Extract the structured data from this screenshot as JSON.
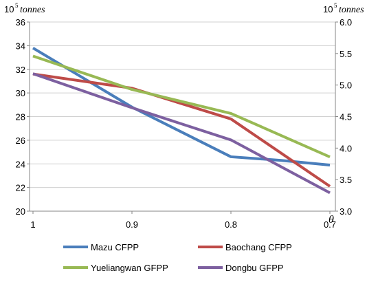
{
  "chart_data": {
    "type": "line",
    "x": [
      "1",
      "0.9",
      "0.8",
      "0.7"
    ],
    "xlabel": "θ",
    "y_left": {
      "unit_base": "10",
      "unit_exp": "5",
      "unit_word": "tonnes",
      "range": [
        20,
        36
      ],
      "ticks": [
        "20",
        "22",
        "24",
        "26",
        "28",
        "30",
        "32",
        "34",
        "36"
      ]
    },
    "y_right": {
      "unit_base": "10",
      "unit_exp": "5",
      "unit_word": "tonnes",
      "range": [
        3.0,
        6.0
      ],
      "ticks": [
        "3.0",
        "3.5",
        "4.0",
        "4.5",
        "5.0",
        "5.5",
        "6.0"
      ]
    },
    "series": [
      {
        "name": "Mazu CFPP",
        "color": "#4a7ebb",
        "axis": "left",
        "values": [
          33.8,
          28.8,
          24.6,
          23.9
        ],
        "extra": {
          "at": 0.75,
          "value": 24.3
        }
      },
      {
        "name": "Baochang CFPP",
        "color": "#be4b48",
        "axis": "left",
        "values": [
          31.6,
          30.4,
          27.8,
          22.1
        ]
      },
      {
        "name": "Yueliangwan GFPP",
        "color": "#98b954",
        "axis": "right",
        "values": [
          5.46,
          4.93,
          4.55,
          3.86
        ]
      },
      {
        "name": "Dongbu GFPP",
        "color": "#7d60a0",
        "axis": "right",
        "values": [
          5.18,
          4.64,
          4.13,
          3.29
        ]
      }
    ],
    "grid": "horizontal",
    "legend_position": "bottom"
  }
}
